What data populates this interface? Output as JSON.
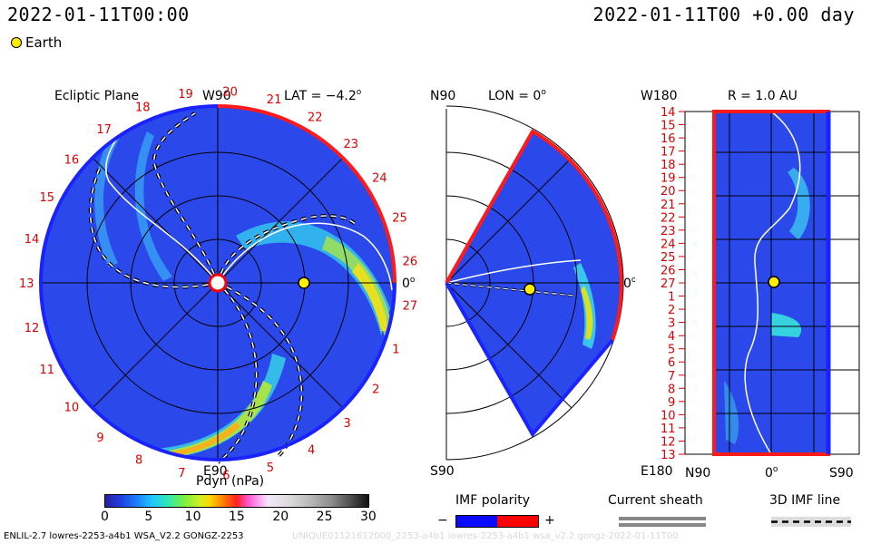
{
  "header": {
    "left_time": "2022-01-11T00:00",
    "right_time": "2022-01-11T00 +0.00 day"
  },
  "legend": {
    "earth_label": "Earth",
    "earth_color": "#ffee00"
  },
  "panels": {
    "ecliptic": {
      "title": "Ecliptic Plane",
      "lat_label": "LAT = −4.2",
      "lat_deg_sup": "o",
      "top_label": "W90",
      "bottom_label": "E90",
      "right_label": "0",
      "right_sup": "o",
      "carrington_labels": [
        "19",
        "20",
        "21",
        "22",
        "23",
        "24",
        "25",
        "26",
        "27",
        "1",
        "2",
        "3",
        "4",
        "5",
        "6",
        "7",
        "8",
        "9",
        "10",
        "11",
        "12",
        "13",
        "14",
        "15",
        "16",
        "17",
        "18"
      ]
    },
    "meridional": {
      "top_left": "N90",
      "bottom_left": "S90",
      "title": "LON = 0",
      "title_sup": "o",
      "right_label": "0",
      "right_sup": "o"
    },
    "shell": {
      "top_left": "W180",
      "bottom_left": "E180",
      "title": "R = 1.0 AU",
      "x_left": "N90",
      "x_mid": "0",
      "x_mid_sup": "o",
      "x_right": "S90",
      "rot_labels": [
        "14",
        "15",
        "16",
        "17",
        "18",
        "19",
        "20",
        "21",
        "22",
        "23",
        "24",
        "25",
        "26",
        "27",
        "1",
        "2",
        "3",
        "4",
        "5",
        "6",
        "7",
        "8",
        "9",
        "10",
        "11",
        "12",
        "13"
      ]
    }
  },
  "colorbar": {
    "title": "Pdyn (nPa)",
    "ticks": [
      "0",
      "5",
      "10",
      "15",
      "20",
      "25",
      "30"
    ],
    "min": 0,
    "max": 30
  },
  "imf_polarity": {
    "title": "IMF polarity",
    "minus": "−",
    "plus": "+",
    "neg_color": "#0a0aff",
    "pos_color": "#ff0000"
  },
  "current_sheath": {
    "title": "Current sheath"
  },
  "imf_3d": {
    "title": "3D IMF line"
  },
  "footer": {
    "left": "ENLIL-2.7 lowres-2253-a4b1 WSA_V2.2 GONGZ-2253",
    "right": "UNIQUE01121612000_2253-a4b1 lowres-2253-a4b1 wsa_v2.2 gongz-2022-01-11T00"
  },
  "chart_data": {
    "type": "heatmap",
    "title": "Pdyn (nPa)",
    "colorbar_range": [
      0,
      30
    ],
    "earth": {
      "ecliptic_r_au": 1.0,
      "ecliptic_lon_deg": 0,
      "lat_deg": -4.2
    }
  }
}
